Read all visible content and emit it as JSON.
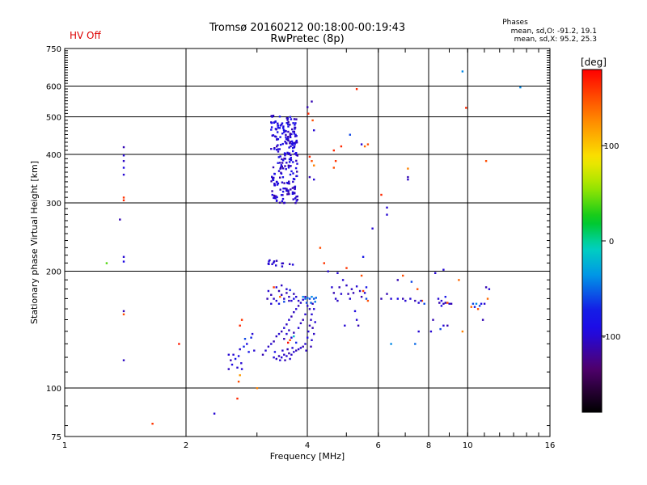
{
  "header": {
    "title": "Tromsø 20160212 00:18:00-00:19:43",
    "subtitle": "RwPretec (8p)",
    "status": "HV Off",
    "phase_title": "Phases",
    "phase_o": "mean, sd,O: -91.2, 19.1",
    "phase_x": "mean, sd,X:  95.2, 25.3"
  },
  "colorbar": {
    "unit": "[deg]",
    "ticks": [
      {
        "value": 100,
        "label": "100"
      },
      {
        "value": 0,
        "label": "0"
      },
      {
        "value": -100,
        "label": "-100"
      }
    ],
    "range": [
      -180,
      180
    ]
  },
  "chart_data": {
    "type": "scatter",
    "title": "Tromsø 20160212 00:18:00-00:19:43",
    "subtitle": "RwPretec (8p)",
    "xlabel": "Frequency [MHz]",
    "ylabel": "Stationary phase Virtual Height [km]",
    "xscale": "log",
    "yscale": "log",
    "xlim": [
      1,
      16
    ],
    "ylim": [
      75,
      750
    ],
    "xticks": [
      1,
      2,
      4,
      6,
      8,
      10,
      16
    ],
    "yticks": [
      75,
      100,
      200,
      300,
      400,
      500,
      600,
      750
    ],
    "vgrid": [
      2,
      4,
      6,
      8,
      10
    ],
    "hgrid": [
      100,
      200,
      300,
      400,
      500,
      600
    ],
    "colorscale": "rainbow phase [deg]",
    "points": [
      [
        1.27,
        210,
        40
      ],
      [
        1.4,
        418,
        -110
      ],
      [
        1.4,
        398,
        -100
      ],
      [
        1.4,
        385,
        -105
      ],
      [
        1.4,
        370,
        -95
      ],
      [
        1.4,
        355,
        -100
      ],
      [
        1.4,
        310,
        160
      ],
      [
        1.4,
        305,
        165
      ],
      [
        1.4,
        218,
        -100
      ],
      [
        1.4,
        212,
        -95
      ],
      [
        1.4,
        158,
        -110
      ],
      [
        1.4,
        155,
        150
      ],
      [
        1.4,
        118,
        -105
      ],
      [
        1.37,
        272,
        -110
      ],
      [
        1.65,
        81,
        160
      ],
      [
        1.92,
        130,
        170
      ],
      [
        2.35,
        86,
        -100
      ],
      [
        2.55,
        122,
        -100
      ],
      [
        2.58,
        118,
        -110
      ],
      [
        2.6,
        115,
        -95
      ],
      [
        2.55,
        112,
        -105
      ],
      [
        2.62,
        122,
        -100
      ],
      [
        2.65,
        119,
        -80
      ],
      [
        2.7,
        121,
        -90
      ],
      [
        2.72,
        126,
        -100
      ],
      [
        2.78,
        128,
        -70
      ],
      [
        2.8,
        134,
        -60
      ],
      [
        2.83,
        130,
        -90
      ],
      [
        2.86,
        124,
        -80
      ],
      [
        2.68,
        113,
        -100
      ],
      [
        2.75,
        112,
        -100
      ],
      [
        2.72,
        108,
        120
      ],
      [
        2.7,
        104,
        150
      ],
      [
        2.74,
        116,
        -100
      ],
      [
        2.9,
        135,
        -70
      ],
      [
        2.92,
        138,
        -100
      ],
      [
        2.95,
        125,
        -100
      ],
      [
        2.68,
        94,
        165
      ],
      [
        2.75,
        150,
        160
      ],
      [
        2.72,
        145,
        165
      ],
      [
        3.0,
        100,
        130
      ],
      [
        3.1,
        122,
        -110
      ],
      [
        3.15,
        125,
        -100
      ],
      [
        3.2,
        128,
        -105
      ],
      [
        3.25,
        130,
        -100
      ],
      [
        3.3,
        132,
        -110
      ],
      [
        3.35,
        136,
        -105
      ],
      [
        3.4,
        138,
        -100
      ],
      [
        3.45,
        140,
        -110
      ],
      [
        3.5,
        143,
        -100
      ],
      [
        3.55,
        146,
        -105
      ],
      [
        3.6,
        150,
        -100
      ],
      [
        3.65,
        153,
        -110
      ],
      [
        3.7,
        157,
        -105
      ],
      [
        3.75,
        160,
        -100
      ],
      [
        3.8,
        163,
        -110
      ],
      [
        3.85,
        166,
        -105
      ],
      [
        3.9,
        169,
        -100
      ],
      [
        3.95,
        172,
        -110
      ],
      [
        3.3,
        120,
        -100
      ],
      [
        3.35,
        119,
        -105
      ],
      [
        3.4,
        121,
        -110
      ],
      [
        3.45,
        120,
        -100
      ],
      [
        3.5,
        122,
        -105
      ],
      [
        3.55,
        121,
        -100
      ],
      [
        3.6,
        123,
        -110
      ],
      [
        3.65,
        122,
        -105
      ],
      [
        3.7,
        124,
        -100
      ],
      [
        3.75,
        125,
        -110
      ],
      [
        3.8,
        126,
        -105
      ],
      [
        3.85,
        127,
        -100
      ],
      [
        3.9,
        128,
        -110
      ],
      [
        3.42,
        118,
        -100
      ],
      [
        3.52,
        118,
        -110
      ],
      [
        3.62,
        119,
        -100
      ],
      [
        3.32,
        124,
        -90
      ],
      [
        3.47,
        125,
        -100
      ],
      [
        3.57,
        126,
        -110
      ],
      [
        3.67,
        127,
        -100
      ],
      [
        3.5,
        134,
        -110
      ],
      [
        3.55,
        138,
        -100
      ],
      [
        3.6,
        141,
        -105
      ],
      [
        3.65,
        135,
        -100
      ],
      [
        3.7,
        139,
        -110
      ],
      [
        3.8,
        143,
        -100
      ],
      [
        3.85,
        147,
        -105
      ],
      [
        3.9,
        150,
        -110
      ],
      [
        3.95,
        155,
        -100
      ],
      [
        3.58,
        131,
        175
      ],
      [
        3.62,
        133,
        150
      ],
      [
        3.7,
        136,
        -20
      ],
      [
        3.75,
        131,
        -70
      ],
      [
        3.95,
        130,
        -100
      ],
      [
        4.0,
        135,
        -95
      ],
      [
        4.02,
        140,
        -100
      ],
      [
        4.05,
        145,
        -110
      ],
      [
        4.08,
        150,
        -105
      ],
      [
        4.1,
        155,
        -100
      ],
      [
        4.05,
        160,
        -110
      ],
      [
        4.0,
        163,
        -100
      ],
      [
        4.12,
        165,
        -105
      ],
      [
        4.15,
        160,
        -100
      ],
      [
        4.08,
        128,
        -110
      ],
      [
        4.1,
        133,
        -100
      ],
      [
        4.15,
        138,
        -105
      ],
      [
        4.12,
        143,
        -110
      ],
      [
        4.18,
        148,
        -100
      ],
      [
        3.97,
        125,
        -105
      ],
      [
        3.2,
        178,
        -100
      ],
      [
        3.25,
        174,
        -110
      ],
      [
        3.3,
        170,
        -105
      ],
      [
        3.35,
        182,
        -100
      ],
      [
        3.4,
        178,
        -110
      ],
      [
        3.45,
        174,
        -105
      ],
      [
        3.5,
        170,
        -100
      ],
      [
        3.55,
        176,
        -110
      ],
      [
        3.6,
        172,
        -105
      ],
      [
        3.65,
        168,
        -100
      ],
      [
        3.7,
        175,
        -110
      ],
      [
        3.25,
        165,
        -100
      ],
      [
        3.3,
        182,
        160
      ],
      [
        3.35,
        168,
        -100
      ],
      [
        3.45,
        184,
        -105
      ],
      [
        3.55,
        180,
        -100
      ],
      [
        3.6,
        168,
        -110
      ],
      [
        3.4,
        165,
        -80
      ],
      [
        3.5,
        167,
        -60
      ],
      [
        3.62,
        179,
        -70
      ],
      [
        3.7,
        170,
        -85
      ],
      [
        3.18,
        170,
        -110
      ],
      [
        3.75,
        172,
        -100
      ],
      [
        3.8,
        168,
        -105
      ],
      [
        3.42,
        172,
        140
      ],
      [
        3.9,
        172,
        -40
      ],
      [
        3.95,
        170,
        -50
      ],
      [
        4.0,
        171,
        -45
      ],
      [
        4.05,
        170,
        -60
      ],
      [
        4.1,
        172,
        -40
      ],
      [
        4.15,
        170,
        -55
      ],
      [
        4.2,
        171,
        -50
      ],
      [
        3.98,
        166,
        -60
      ],
      [
        4.08,
        166,
        -50
      ],
      [
        4.18,
        167,
        -45
      ],
      [
        4.6,
        182,
        -100
      ],
      [
        4.65,
        176,
        -110
      ],
      [
        4.7,
        170,
        -100
      ],
      [
        4.75,
        168,
        -105
      ],
      [
        4.8,
        182,
        -110
      ],
      [
        4.85,
        175,
        -100
      ],
      [
        5.0,
        184,
        -105
      ],
      [
        5.05,
        175,
        -110
      ],
      [
        5.1,
        170,
        -100
      ],
      [
        5.15,
        180,
        -105
      ],
      [
        5.2,
        176,
        -110
      ],
      [
        5.3,
        183,
        -100
      ],
      [
        5.4,
        178,
        -105
      ],
      [
        5.45,
        172,
        -110
      ],
      [
        5.5,
        178,
        160
      ],
      [
        5.55,
        176,
        -100
      ],
      [
        5.6,
        170,
        -60
      ],
      [
        5.65,
        168,
        150
      ],
      [
        5.3,
        150,
        -100
      ],
      [
        5.35,
        145,
        -110
      ],
      [
        5.25,
        158,
        -95
      ],
      [
        4.95,
        145,
        -100
      ],
      [
        4.9,
        190,
        -100
      ],
      [
        5.45,
        195,
        150
      ],
      [
        5.6,
        182,
        -80
      ],
      [
        6.3,
        175,
        -110
      ],
      [
        6.45,
        170,
        -100
      ],
      [
        6.7,
        170,
        -95
      ],
      [
        6.9,
        170,
        -110
      ],
      [
        7.0,
        168,
        -100
      ],
      [
        7.2,
        170,
        -100
      ],
      [
        7.4,
        168,
        -110
      ],
      [
        7.55,
        166,
        -100
      ],
      [
        7.7,
        168,
        150
      ],
      [
        7.8,
        165,
        -60
      ],
      [
        7.65,
        168,
        -80
      ],
      [
        8.5,
        166,
        -110
      ],
      [
        8.6,
        168,
        -100
      ],
      [
        8.7,
        165,
        -105
      ],
      [
        8.8,
        166,
        -110
      ],
      [
        8.9,
        166,
        150
      ],
      [
        9.0,
        165,
        -100
      ],
      [
        9.1,
        165,
        -110
      ],
      [
        8.55,
        142,
        -60
      ],
      [
        8.7,
        145,
        -100
      ],
      [
        8.9,
        145,
        -110
      ],
      [
        8.45,
        170,
        -100
      ],
      [
        8.6,
        163,
        -90
      ],
      [
        8.8,
        172,
        -80
      ],
      [
        10.2,
        162,
        140
      ],
      [
        10.3,
        165,
        -60
      ],
      [
        10.4,
        162,
        -80
      ],
      [
        10.6,
        160,
        150
      ],
      [
        10.7,
        163,
        -60
      ],
      [
        10.8,
        165,
        -90
      ],
      [
        11.0,
        165,
        -100
      ],
      [
        10.5,
        165,
        -40
      ],
      [
        11.1,
        182,
        -110
      ],
      [
        11.3,
        180,
        -100
      ],
      [
        11.2,
        170,
        140
      ],
      [
        10.9,
        150,
        -110
      ],
      [
        6.1,
        315,
        165
      ],
      [
        6.3,
        280,
        -100
      ],
      [
        6.3,
        292,
        -100
      ],
      [
        7.1,
        350,
        -110
      ],
      [
        7.1,
        368,
        130
      ],
      [
        9.7,
        655,
        -40
      ],
      [
        9.9,
        528,
        165
      ],
      [
        13.5,
        596,
        -40
      ],
      [
        11.1,
        385,
        150
      ],
      [
        4.0,
        530,
        -110
      ],
      [
        4.02,
        510,
        165
      ],
      [
        4.1,
        548,
        -110
      ],
      [
        4.12,
        490,
        150
      ],
      [
        4.15,
        462,
        -100
      ],
      [
        4.05,
        395,
        165
      ],
      [
        4.1,
        385,
        150
      ],
      [
        4.15,
        375,
        130
      ],
      [
        4.05,
        350,
        -110
      ],
      [
        4.15,
        345,
        -100
      ],
      [
        4.3,
        230,
        150
      ],
      [
        4.4,
        210,
        160
      ],
      [
        4.5,
        200,
        -100
      ],
      [
        4.65,
        410,
        165
      ],
      [
        4.7,
        385,
        160
      ],
      [
        4.65,
        370,
        150
      ],
      [
        4.85,
        420,
        165
      ],
      [
        5.1,
        450,
        -60
      ],
      [
        5.3,
        590,
        165
      ],
      [
        5.45,
        425,
        -100
      ],
      [
        5.55,
        420,
        140
      ],
      [
        5.65,
        425,
        150
      ],
      [
        5.8,
        258,
        -100
      ],
      [
        5.5,
        218,
        -80
      ],
      [
        4.75,
        198,
        -100
      ],
      [
        5.0,
        204,
        160
      ],
      [
        6.1,
        170,
        -110
      ],
      [
        6.7,
        190,
        -110
      ],
      [
        6.9,
        195,
        150
      ],
      [
        7.25,
        188,
        -60
      ],
      [
        7.4,
        130,
        -50
      ],
      [
        7.5,
        180,
        150
      ],
      [
        7.55,
        140,
        -100
      ],
      [
        8.3,
        198,
        -100
      ],
      [
        8.7,
        202,
        -100
      ],
      [
        8.2,
        150,
        -110
      ],
      [
        8.1,
        140,
        -100
      ],
      [
        9.5,
        190,
        140
      ],
      [
        9.7,
        140,
        130
      ],
      [
        7.1,
        345,
        -105
      ],
      [
        6.45,
        130,
        -40
      ]
    ],
    "clusters": [
      {
        "fx": [
          3.25,
          3.78
        ],
        "h": [
          300,
          505
        ],
        "n": 240,
        "phase": [
          -115,
          -80
        ],
        "seed": 7
      },
      {
        "fx": [
          3.2,
          3.7
        ],
        "h": [
          205,
          215
        ],
        "n": 14,
        "phase": [
          -110,
          -95
        ],
        "seed": 11
      }
    ]
  }
}
